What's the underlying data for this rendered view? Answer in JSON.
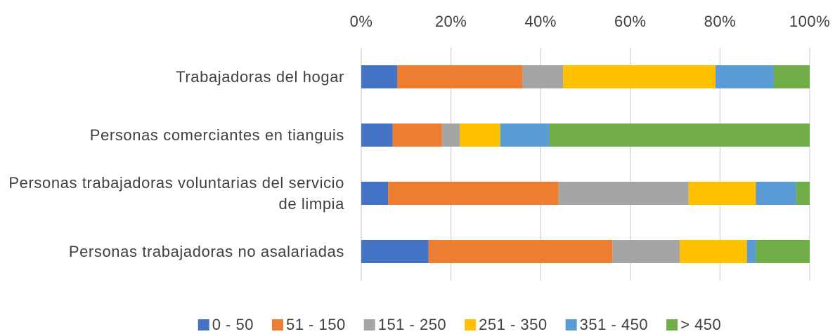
{
  "chart_data": {
    "type": "stacked-bar-horizontal",
    "categories": [
      "Trabajadoras del hogar",
      "Personas comerciantes en tianguis",
      "Personas trabajadoras voluntarias del servicio de limpia",
      "Personas trabajadoras no asalariadas"
    ],
    "series": [
      {
        "name": "0 - 50",
        "color": "#4472c4",
        "values": [
          8,
          7,
          6,
          15
        ]
      },
      {
        "name": "51 - 150",
        "color": "#ed7d31",
        "values": [
          28,
          11,
          38,
          41
        ]
      },
      {
        "name": "151 - 250",
        "color": "#a5a5a5",
        "values": [
          9,
          4,
          29,
          15
        ]
      },
      {
        "name": "251 - 350",
        "color": "#ffc000",
        "values": [
          34,
          9,
          15,
          15
        ]
      },
      {
        "name": "351 - 450",
        "color": "#5b9bd5",
        "values": [
          13,
          11,
          9,
          2
        ]
      },
      {
        "name": "> 450",
        "color": "#70ad47",
        "values": [
          8,
          58,
          3,
          12
        ]
      }
    ],
    "xlim": [
      0,
      100
    ],
    "xticks": [
      {
        "value": 0,
        "label": "0%"
      },
      {
        "value": 20,
        "label": "20%"
      },
      {
        "value": 40,
        "label": "40%"
      },
      {
        "value": 60,
        "label": "60%"
      },
      {
        "value": 80,
        "label": "80%"
      },
      {
        "value": 100,
        "label": "100%"
      }
    ],
    "grid": true,
    "legend": "bottom"
  }
}
